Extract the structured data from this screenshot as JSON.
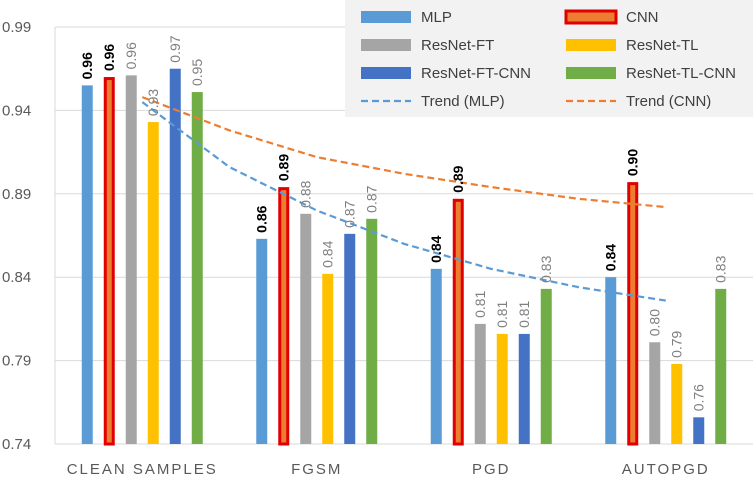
{
  "chart_data": {
    "type": "bar",
    "title": "",
    "xlabel": "",
    "ylabel": "",
    "ylim": [
      0.74,
      0.99
    ],
    "yticks": [
      "0.74",
      "0.79",
      "0.84",
      "0.89",
      "0.94",
      "0.99"
    ],
    "categories": [
      "CLEAN SAMPLES",
      "FGSM",
      "PGD",
      "AUTOPGD"
    ],
    "series": [
      {
        "name": "MLP",
        "color": "#5B9BD5",
        "values": [
          0.955,
          0.863,
          0.845,
          0.84
        ],
        "labels": [
          "0.96",
          "0.86",
          "0.84",
          "0.84"
        ],
        "label_bold": true
      },
      {
        "name": "CNN",
        "color": "#ED7D31",
        "outline": "#E00000",
        "values": [
          0.96,
          0.894,
          0.887,
          0.897
        ],
        "labels": [
          "0.96",
          "0.89",
          "0.89",
          "0.90"
        ],
        "label_bold": true
      },
      {
        "name": "ResNet-FT",
        "color": "#A5A5A5",
        "values": [
          0.961,
          0.878,
          0.812,
          0.801
        ],
        "labels": [
          "0.96",
          "0.88",
          "0.81",
          "0.80"
        ],
        "label_bold": false
      },
      {
        "name": "ResNet-TL",
        "color": "#FFC000",
        "values": [
          0.933,
          0.842,
          0.806,
          0.788
        ],
        "labels": [
          "0.93",
          "0.84",
          "0.81",
          "0.79"
        ],
        "label_bold": false
      },
      {
        "name": "ResNet-FT-CNN",
        "color": "#4472C4",
        "values": [
          0.965,
          0.866,
          0.806,
          0.756
        ],
        "labels": [
          "0.97",
          "0.87",
          "0.81",
          "0.76"
        ],
        "label_bold": false
      },
      {
        "name": "ResNet-TL-CNN",
        "color": "#70AD47",
        "values": [
          0.951,
          0.875,
          0.833,
          0.833
        ],
        "labels": [
          "0.95",
          "0.87",
          "0.83",
          "0.83"
        ],
        "label_bold": false
      }
    ],
    "trends": [
      {
        "name": "Trend (MLP)",
        "color": "#5B9BD5",
        "points": [
          [
            0.5,
            0.945
          ],
          [
            1.0,
            0.906
          ],
          [
            1.5,
            0.88
          ],
          [
            2.0,
            0.86
          ],
          [
            2.5,
            0.845
          ],
          [
            3.0,
            0.834
          ],
          [
            3.5,
            0.826
          ]
        ]
      },
      {
        "name": "Trend (CNN)",
        "color": "#ED7D31",
        "points": [
          [
            0.5,
            0.948
          ],
          [
            1.0,
            0.928
          ],
          [
            1.5,
            0.912
          ],
          [
            2.0,
            0.902
          ],
          [
            2.5,
            0.894
          ],
          [
            3.0,
            0.887
          ],
          [
            3.5,
            0.882
          ]
        ]
      }
    ],
    "legend": {
      "position": "top-right",
      "entries": [
        "MLP",
        "CNN",
        "ResNet-FT",
        "ResNet-TL",
        "ResNet-FT-CNN",
        "ResNet-TL-CNN",
        "Trend (MLP)",
        "Trend (CNN)"
      ]
    }
  }
}
